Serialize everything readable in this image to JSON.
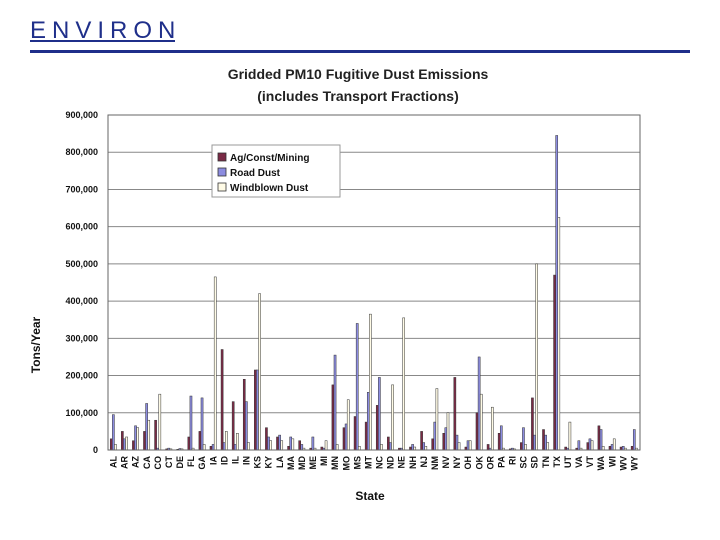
{
  "header": {
    "logo_text": "ENVIRON",
    "brand_color": "#1f2f8a"
  },
  "chart_data": {
    "type": "bar",
    "title_line1": "Gridded PM10 Fugitive Dust Emissions",
    "title_line2": "(includes Transport Fractions)",
    "xlabel": "State",
    "ylabel": "Tons/Year",
    "ylim": [
      0,
      900000
    ],
    "yticks": [
      0,
      100000,
      200000,
      300000,
      400000,
      500000,
      600000,
      700000,
      800000,
      900000
    ],
    "ytick_labels": [
      "0",
      "100,000",
      "200,000",
      "300,000",
      "400,000",
      "500,000",
      "600,000",
      "700,000",
      "800,000",
      "900,000"
    ],
    "grid": true,
    "legend_position": "top-left",
    "categories": [
      "AL",
      "AR",
      "AZ",
      "CA",
      "CO",
      "CT",
      "DE",
      "FL",
      "GA",
      "IA",
      "ID",
      "IL",
      "IN",
      "KS",
      "KY",
      "LA",
      "MA",
      "MD",
      "ME",
      "MI",
      "MN",
      "MO",
      "MS",
      "MT",
      "NC",
      "ND",
      "NE",
      "NH",
      "NJ",
      "NM",
      "NV",
      "NY",
      "OH",
      "OK",
      "OR",
      "PA",
      "RI",
      "SC",
      "SD",
      "TN",
      "TX",
      "UT",
      "VA",
      "VT",
      "WA",
      "WI",
      "WV",
      "WY"
    ],
    "series": [
      {
        "name": "Ag/Const/Mining",
        "color": "#7a2a45",
        "values": [
          30000,
          50000,
          25000,
          50000,
          80000,
          3000,
          2000,
          35000,
          50000,
          10000,
          270000,
          130000,
          190000,
          215000,
          60000,
          35000,
          10000,
          25000,
          5000,
          8000,
          175000,
          60000,
          90000,
          75000,
          120000,
          35000,
          5000,
          8000,
          50000,
          30000,
          45000,
          195000,
          8000,
          100000,
          15000,
          45000,
          3000,
          20000,
          140000,
          55000,
          470000,
          8000,
          5000,
          20000,
          65000,
          10000,
          8000,
          10000
        ]
      },
      {
        "name": "Road Dust",
        "color": "#8c8ce0",
        "values": [
          95000,
          30000,
          65000,
          125000,
          5000,
          5000,
          4000,
          145000,
          140000,
          15000,
          20000,
          15000,
          130000,
          215000,
          35000,
          40000,
          35000,
          15000,
          35000,
          5000,
          255000,
          70000,
          340000,
          155000,
          195000,
          20000,
          5000,
          15000,
          20000,
          75000,
          60000,
          40000,
          25000,
          250000,
          5000,
          65000,
          5000,
          60000,
          40000,
          40000,
          845000,
          5000,
          25000,
          30000,
          55000,
          15000,
          10000,
          55000
        ]
      },
      {
        "name": "Windblown Dust",
        "color": "#fffbe6",
        "values": [
          15000,
          35000,
          60000,
          80000,
          150000,
          3000,
          3000,
          5000,
          15000,
          465000,
          50000,
          45000,
          20000,
          420000,
          25000,
          25000,
          30000,
          5000,
          5000,
          25000,
          15000,
          135000,
          10000,
          365000,
          15000,
          175000,
          355000,
          8000,
          10000,
          165000,
          100000,
          20000,
          25000,
          150000,
          115000,
          5000,
          3000,
          15000,
          500000,
          20000,
          625000,
          75000,
          5000,
          25000,
          10000,
          30000,
          5000,
          5000
        ]
      }
    ]
  }
}
